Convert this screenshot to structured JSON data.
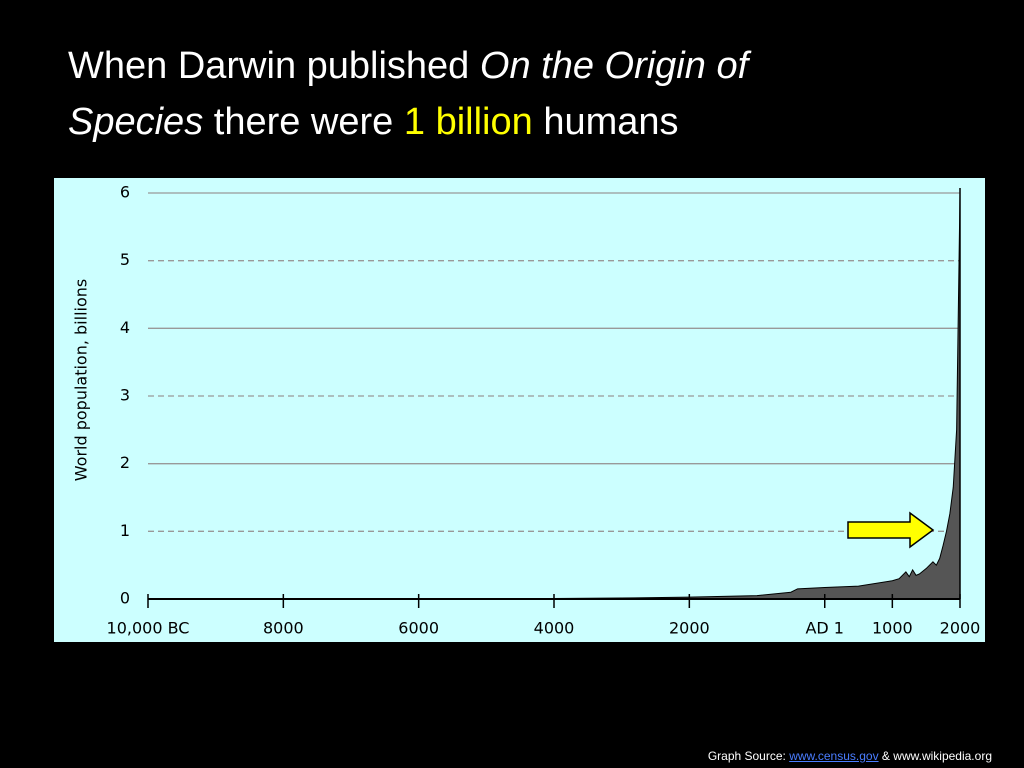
{
  "chart_data": {
    "type": "area",
    "title_lines": [
      [
        "When Darwin published",
        "On the Origin of"
      ],
      [
        "Species",
        "there were",
        "1 billion",
        "humans"
      ]
    ],
    "y_label": "World population, billions",
    "x": [
      -10000,
      -8000,
      -6000,
      -5000,
      -4000,
      -3000,
      -2000,
      -1000,
      -500,
      -400,
      1,
      500,
      1000,
      1100,
      1200,
      1250,
      1300,
      1350,
      1400,
      1500,
      1600,
      1650,
      1700,
      1750,
      1800,
      1850,
      1900,
      1950,
      2000
    ],
    "values": [
      0.004,
      0.005,
      0.006,
      0.005,
      0.007,
      0.014,
      0.027,
      0.05,
      0.1,
      0.15,
      0.17,
      0.19,
      0.27,
      0.3,
      0.4,
      0.33,
      0.43,
      0.35,
      0.37,
      0.45,
      0.55,
      0.5,
      0.6,
      0.79,
      1.0,
      1.26,
      1.65,
      2.5,
      6.0
    ],
    "color": "#555555",
    "xlim": [
      -10000,
      2000
    ],
    "xticks": [
      {
        "value": -10000,
        "label": "10,000 BC"
      },
      {
        "value": -8000,
        "label": "8000"
      },
      {
        "value": -6000,
        "label": "6000"
      },
      {
        "value": -4000,
        "label": "4000"
      },
      {
        "value": -2000,
        "label": "2000"
      },
      {
        "value": 1,
        "label": "AD 1"
      },
      1000,
      2000
    ],
    "ylim": [
      0,
      6
    ],
    "yticks": [
      0,
      1,
      2,
      3,
      4,
      5,
      6
    ],
    "grid": true,
    "source": {
      "label": "Graph Source:",
      "link": "www.census.gov",
      "joiner": "&",
      "other": "www.wikipedia.org"
    }
  }
}
